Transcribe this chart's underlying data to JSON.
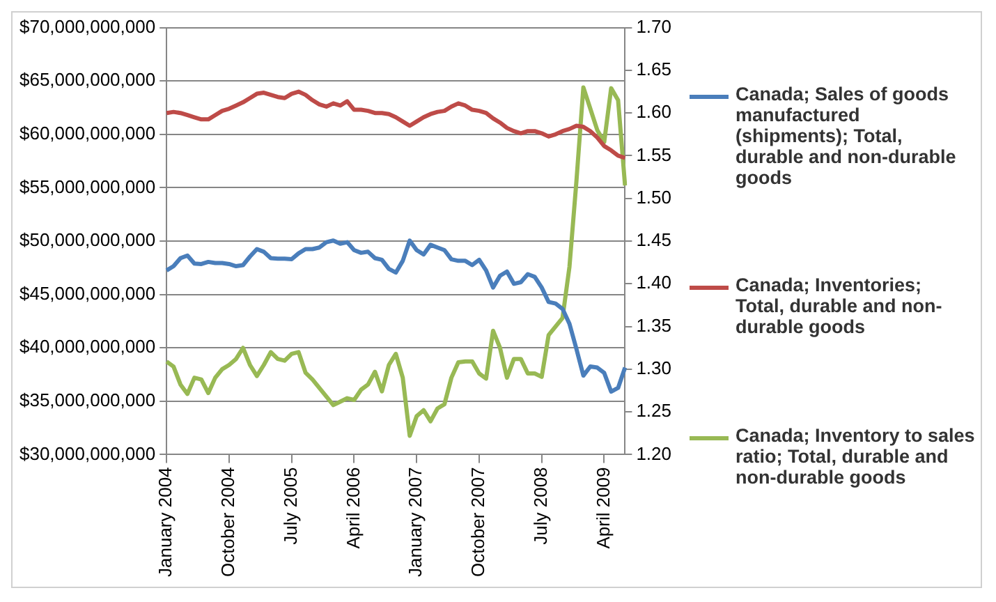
{
  "chart_data": {
    "type": "line",
    "categories": [
      "January 2004",
      null,
      null,
      null,
      null,
      null,
      null,
      null,
      null,
      "October 2004",
      null,
      null,
      null,
      null,
      null,
      null,
      null,
      null,
      "July 2005",
      null,
      null,
      null,
      null,
      null,
      null,
      null,
      null,
      "April 2006",
      null,
      null,
      null,
      null,
      null,
      null,
      null,
      null,
      "January 2007",
      null,
      null,
      null,
      null,
      null,
      null,
      null,
      null,
      "October 2007",
      null,
      null,
      null,
      null,
      null,
      null,
      null,
      null,
      "July 2008",
      null,
      null,
      null,
      null,
      null,
      null,
      null,
      null,
      "April 2009",
      null,
      null,
      null
    ],
    "series": [
      {
        "name": "Canada; Sales of goods manufactured (shipments); Total, durable and non-durable goods",
        "color": "#4a7ebb",
        "values": [
          47250000000,
          47650000000,
          48400000000,
          48650000000,
          47900000000,
          47850000000,
          48050000000,
          47950000000,
          47950000000,
          47850000000,
          47650000000,
          47750000000,
          48550000000,
          49250000000,
          49000000000,
          48400000000,
          48350000000,
          48350000000,
          48300000000,
          48850000000,
          49250000000,
          49250000000,
          49400000000,
          49900000000,
          50050000000,
          49750000000,
          49900000000,
          49150000000,
          48900000000,
          49000000000,
          48400000000,
          48250000000,
          47400000000,
          47050000000,
          48150000000,
          50050000000,
          49150000000,
          48750000000,
          49650000000,
          49400000000,
          49150000000,
          48300000000,
          48150000000,
          48150000000,
          47750000000,
          48250000000,
          47250000000,
          45650000000,
          46750000000,
          47150000000,
          46000000000,
          46150000000,
          46900000000,
          46650000000,
          45650000000,
          44300000000,
          44150000000,
          43650000000,
          42250000000,
          39900000000,
          37400000000,
          38250000000,
          38150000000,
          37650000000,
          35900000000,
          36250000000,
          38150000000
        ]
      },
      {
        "name": "Canada; Inventories; Total, durable and non-durable goods",
        "color": "#be4b48",
        "values": [
          62000000000,
          62100000000,
          62000000000,
          61800000000,
          61600000000,
          61400000000,
          61400000000,
          61800000000,
          62200000000,
          62400000000,
          62700000000,
          63000000000,
          63400000000,
          63800000000,
          63900000000,
          63700000000,
          63500000000,
          63400000000,
          63800000000,
          64000000000,
          63700000000,
          63200000000,
          62800000000,
          62600000000,
          62900000000,
          62700000000,
          63100000000,
          62300000000,
          62300000000,
          62200000000,
          62000000000,
          62000000000,
          61900000000,
          61600000000,
          61200000000,
          60800000000,
          61200000000,
          61600000000,
          61900000000,
          62100000000,
          62200000000,
          62600000000,
          62900000000,
          62700000000,
          62300000000,
          62200000000,
          62000000000,
          61500000000,
          61100000000,
          60600000000,
          60300000000,
          60100000000,
          60300000000,
          60300000000,
          60100000000,
          59800000000,
          60000000000,
          60300000000,
          60500000000,
          60800000000,
          60700000000,
          60300000000,
          59700000000,
          58900000000,
          58500000000,
          58000000000,
          57800000000
        ]
      },
      {
        "name": "Canada; Inventory to sales ratio; Total, durable and non-durable goods",
        "color": "#98b954",
        "axis": "y2",
        "values": [
          1.309,
          1.303,
          1.282,
          1.271,
          1.29,
          1.288,
          1.272,
          1.29,
          1.3,
          1.305,
          1.312,
          1.325,
          1.305,
          1.292,
          1.305,
          1.32,
          1.312,
          1.31,
          1.318,
          1.32,
          1.296,
          1.288,
          1.278,
          1.268,
          1.258,
          1.262,
          1.266,
          1.264,
          1.276,
          1.282,
          1.297,
          1.274,
          1.305,
          1.318,
          1.29,
          1.222,
          1.245,
          1.252,
          1.239,
          1.254,
          1.259,
          1.29,
          1.308,
          1.309,
          1.309,
          1.295,
          1.289,
          1.345,
          1.325,
          1.29,
          1.312,
          1.312,
          1.295,
          1.295,
          1.291,
          1.34,
          1.35,
          1.36,
          1.42,
          1.52,
          1.63,
          1.605,
          1.58,
          1.566,
          1.629,
          1.615,
          1.515
        ]
      }
    ],
    "ylim": [
      30000000000,
      70000000000
    ],
    "yticks": [
      {
        "value": 30000000000,
        "label": "$30,000,000,000"
      },
      {
        "value": 35000000000,
        "label": "$35,000,000,000"
      },
      {
        "value": 40000000000,
        "label": "$40,000,000,000"
      },
      {
        "value": 45000000000,
        "label": "$45,000,000,000"
      },
      {
        "value": 50000000000,
        "label": "$50,000,000,000"
      },
      {
        "value": 55000000000,
        "label": "$55,000,000,000"
      },
      {
        "value": 60000000000,
        "label": "$60,000,000,000"
      },
      {
        "value": 65000000000,
        "label": "$65,000,000,000"
      },
      {
        "value": 70000000000,
        "label": "$70,000,000,000"
      }
    ],
    "y2lim": [
      1.2,
      1.7
    ],
    "y2ticks": [
      {
        "value": 1.2,
        "label": "1.20"
      },
      {
        "value": 1.25,
        "label": "1.25"
      },
      {
        "value": 1.3,
        "label": "1.30"
      },
      {
        "value": 1.35,
        "label": "1.35"
      },
      {
        "value": 1.4,
        "label": "1.40"
      },
      {
        "value": 1.45,
        "label": "1.45"
      },
      {
        "value": 1.5,
        "label": "1.50"
      },
      {
        "value": 1.55,
        "label": "1.55"
      },
      {
        "value": 1.6,
        "label": "1.60"
      },
      {
        "value": 1.65,
        "label": "1.65"
      },
      {
        "value": 1.7,
        "label": "1.70"
      }
    ],
    "grid": "y",
    "legend": "right",
    "marker": "none",
    "line_style": "solid"
  }
}
